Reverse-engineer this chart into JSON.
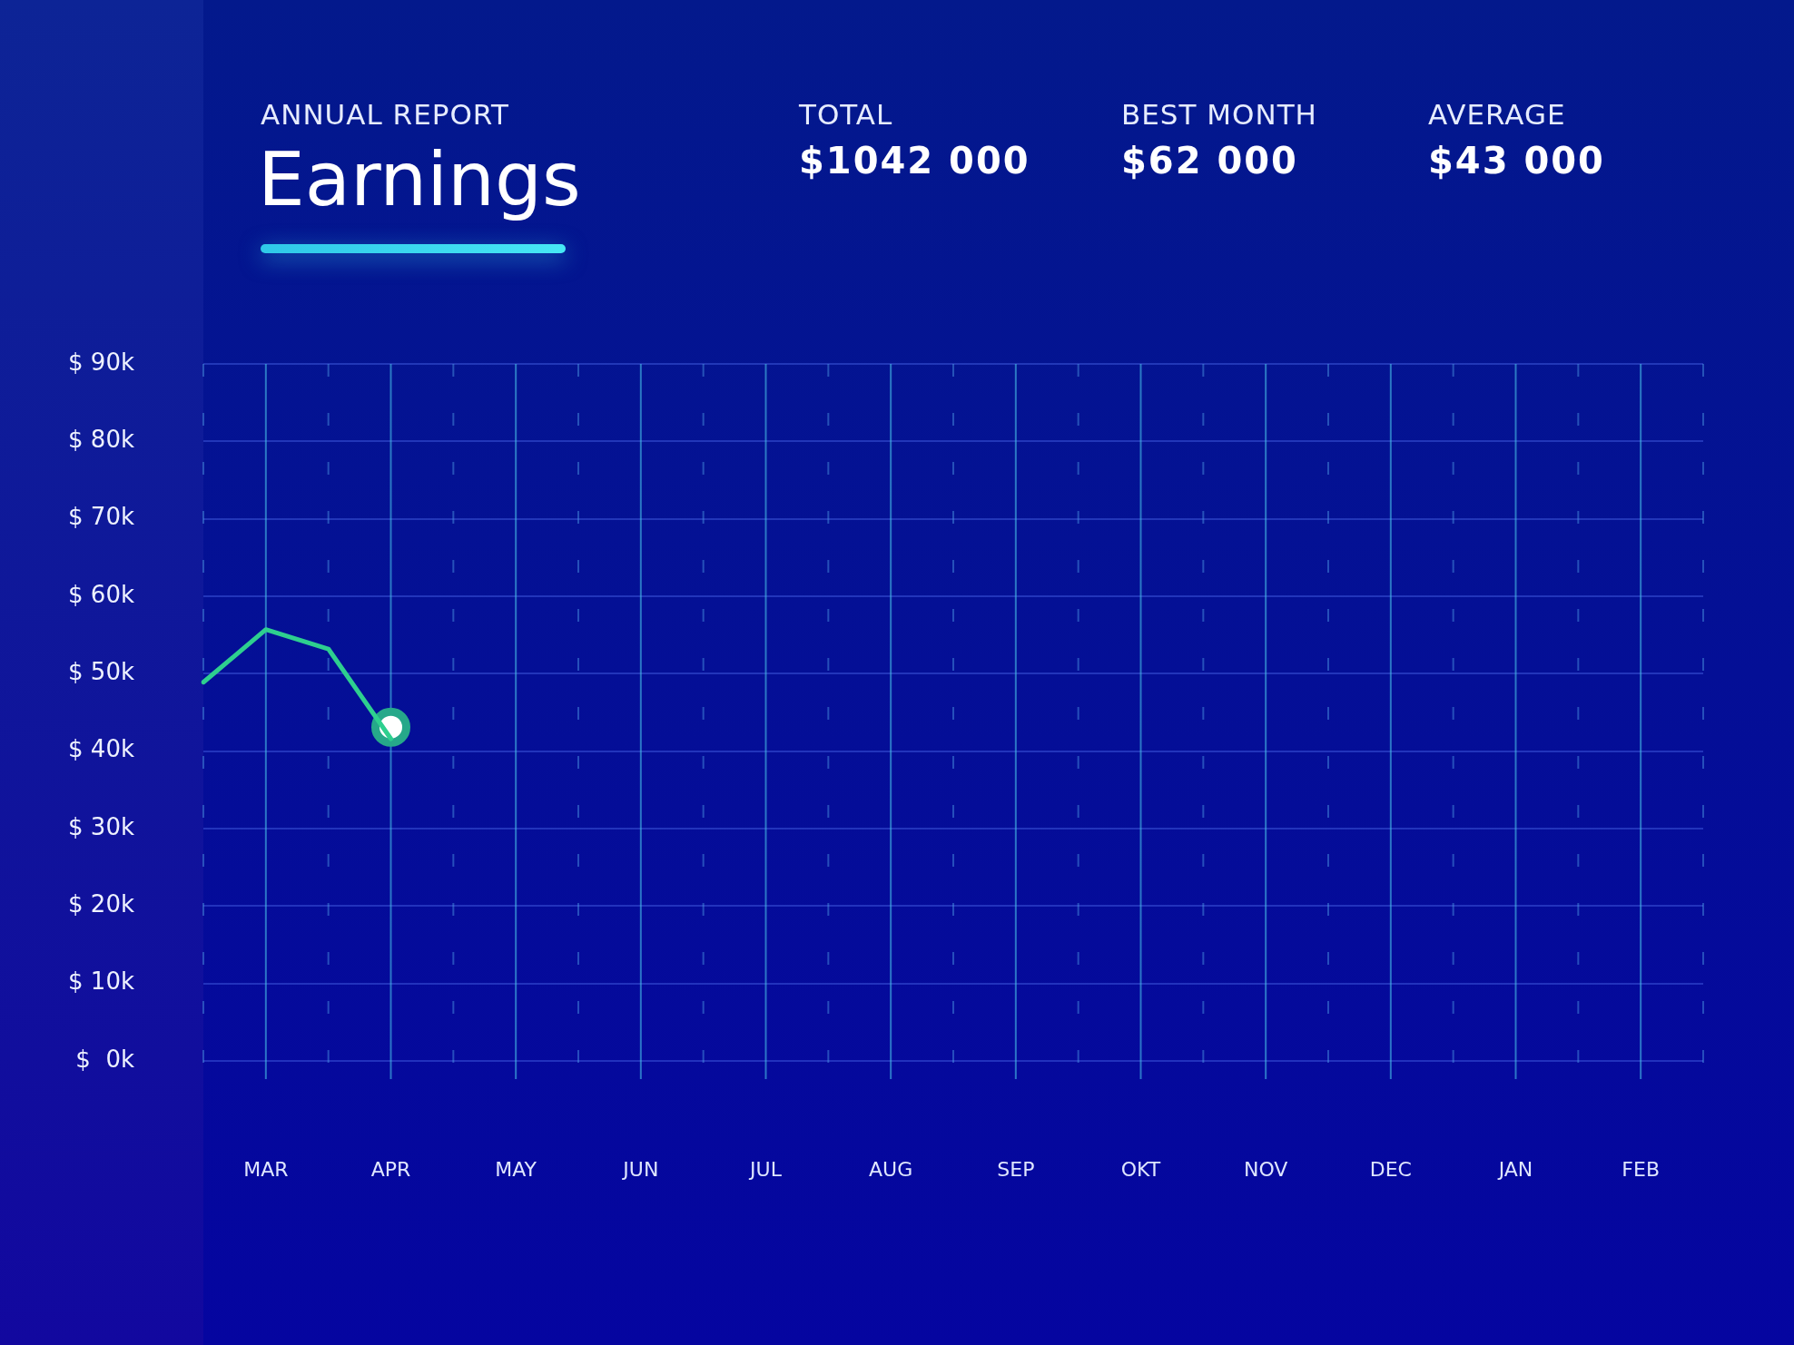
{
  "chart_data": {
    "type": "line",
    "title": "Earnings",
    "subtitle": "ANNUAL REPORT",
    "annotations": [
      "TOTAL",
      "$1042 000",
      "BEST MONTH",
      "$62 000",
      "AVERAGE",
      "$43 000"
    ],
    "categories": [
      null,
      "MAR",
      null,
      "APR",
      null,
      "MAY",
      null,
      "JUN",
      null,
      "JUL",
      null,
      "AUG",
      null,
      "SEP",
      null,
      "OKT",
      null,
      "NOV",
      null,
      "DEC",
      null,
      "JAN",
      null,
      "FEB",
      null
    ],
    "series": [
      {
        "color": "#2ecf8f",
        "values": [
          48.9,
          55.7,
          53.2,
          41.6,
          null,
          null,
          null,
          null,
          null,
          null,
          null,
          null,
          null,
          null,
          null,
          null,
          null,
          null,
          null,
          null,
          null,
          null,
          null,
          null,
          null
        ],
        "marker": "none"
      },
      {
        "type": "scatter",
        "color": "#26a88a",
        "x": [
          "APR"
        ],
        "values": [
          43.1
        ],
        "marker": "circle"
      }
    ],
    "ylim": [
      0,
      90
    ],
    "yticks": [
      {
        "value": 0,
        "label": "$  0k"
      },
      {
        "value": 10,
        "label": "$ 10k"
      },
      {
        "value": 20,
        "label": "$ 20k"
      },
      {
        "value": 30,
        "label": "$ 30k"
      },
      {
        "value": 40,
        "label": "$ 40k"
      },
      {
        "value": 50,
        "label": "$ 50k"
      },
      {
        "value": 60,
        "label": "$ 60k"
      },
      {
        "value": 70,
        "label": "$ 70k"
      },
      {
        "value": 80,
        "label": "$ 80k"
      },
      {
        "value": 90,
        "label": "$ 90k"
      }
    ],
    "grid": true,
    "legend": false
  }
}
